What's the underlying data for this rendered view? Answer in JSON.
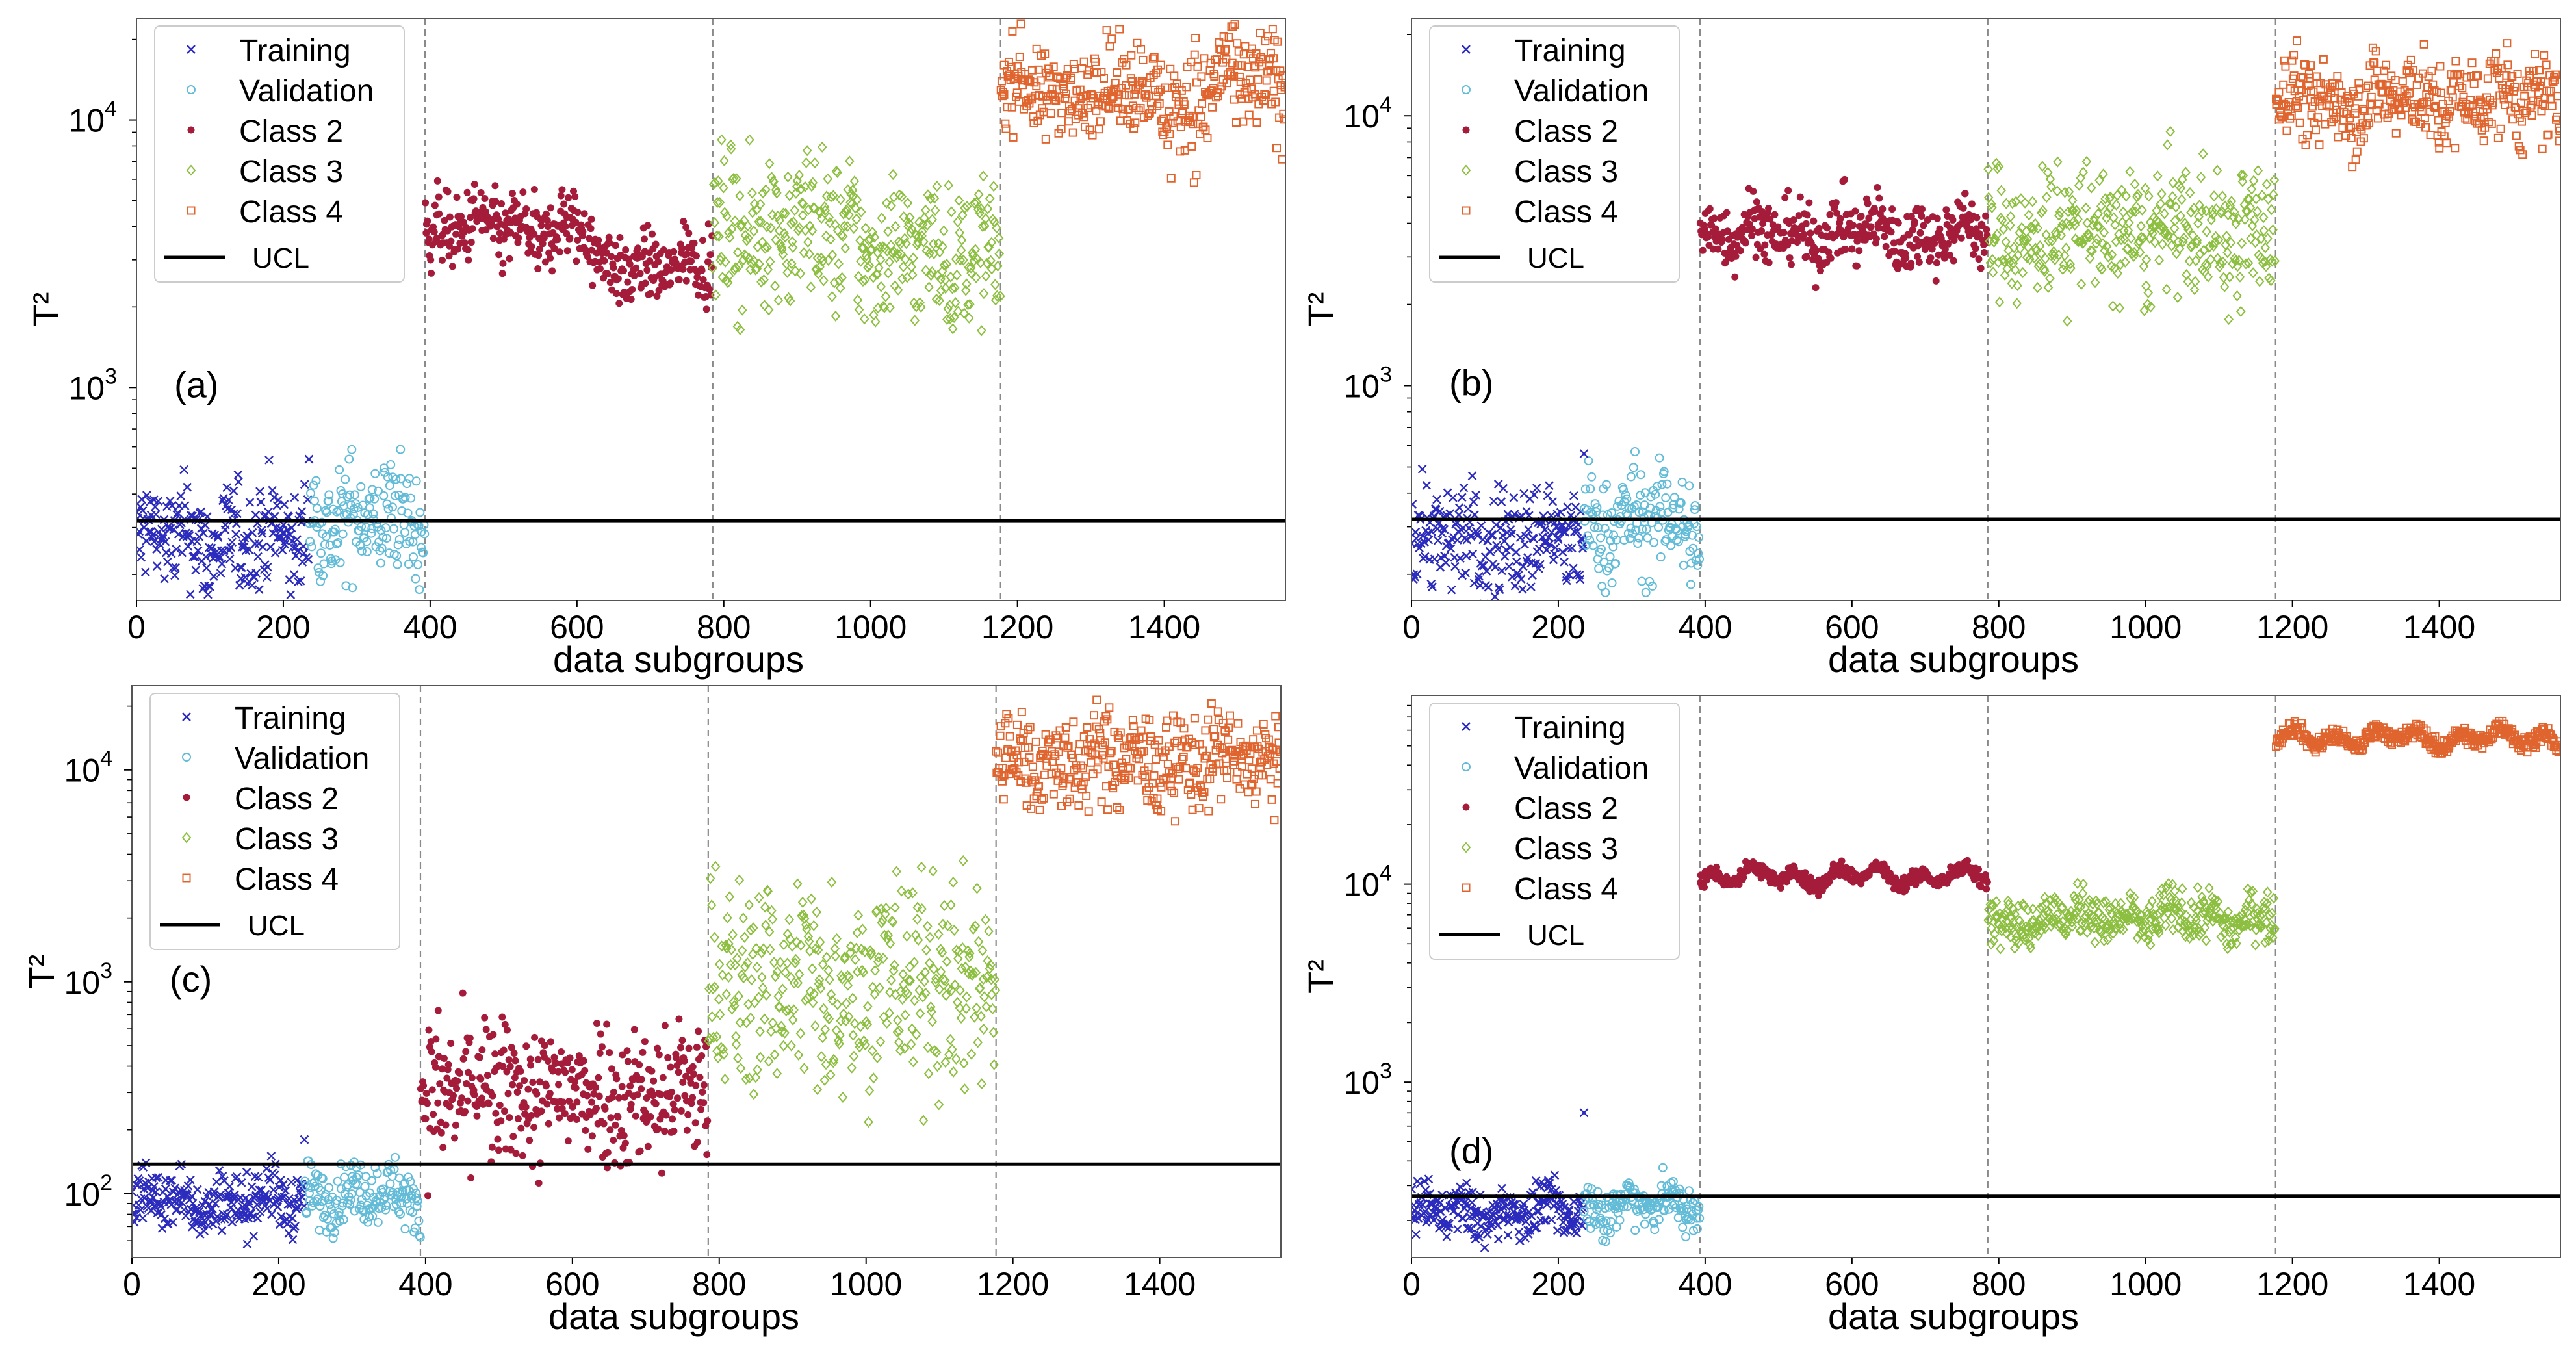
{
  "figure": {
    "shared": {
      "xlabel": "data subgroups",
      "ylabel": "T²",
      "xticks": [
        0,
        200,
        400,
        600,
        800,
        1000,
        1200,
        1400
      ],
      "xlim": [
        0,
        1565
      ],
      "boundaries": [
        393,
        785,
        1177
      ],
      "legend_location": "upper-left",
      "series_style": [
        {
          "name": "Training",
          "marker": "x",
          "color": "#2b2bbd"
        },
        {
          "name": "Validation",
          "marker": "circle",
          "color": "#62bcd8"
        },
        {
          "name": "Class 2",
          "marker": "dot",
          "color": "#a51c3a"
        },
        {
          "name": "Class 3",
          "marker": "diamond",
          "color": "#8cbf3f"
        },
        {
          "name": "Class 4",
          "marker": "square",
          "color": "#e0642e"
        }
      ],
      "ucl_label": "UCL",
      "ucl_color": "#000000"
    }
  },
  "chart_data": [
    {
      "type": "scatter",
      "panel_label": "(a)",
      "yscale": "log",
      "ylim": [
        160,
        24000
      ],
      "ytick_labels": [
        {
          "exp": "3",
          "value": 1000
        },
        {
          "exp": "4",
          "value": 10000
        }
      ],
      "ucl": 318,
      "outlier": {
        "x": 235,
        "y": 540
      },
      "series": [
        {
          "name": "Training",
          "x_range": [
            0,
            235
          ],
          "segments": [
            {
              "from": 0,
              "to": 235,
              "level": 270,
              "spread": 0.1
            }
          ]
        },
        {
          "name": "Validation",
          "x_range": [
            235,
            393
          ],
          "segments": [
            {
              "from": 235,
              "to": 393,
              "level": 320,
              "spread": 0.11
            }
          ]
        },
        {
          "name": "Class 2",
          "x_range": [
            393,
            785
          ],
          "segments": [
            {
              "from": 393,
              "to": 620,
              "level": 3900,
              "spread": 0.07
            },
            {
              "from": 620,
              "to": 785,
              "level": 2850,
              "spread": 0.06
            }
          ]
        },
        {
          "name": "Class 3",
          "x_range": [
            785,
            1177
          ],
          "segments": [
            {
              "from": 785,
              "to": 980,
              "level": 3900,
              "spread": 0.14
            },
            {
              "from": 980,
              "to": 1177,
              "level": 3200,
              "spread": 0.13
            }
          ]
        },
        {
          "name": "Class 4",
          "x_range": [
            1177,
            1565
          ],
          "segments": [
            {
              "from": 1177,
              "to": 1400,
              "level": 13000,
              "spread": 0.08
            },
            {
              "from": 1400,
              "to": 1460,
              "level": 11500,
              "spread": 0.12
            },
            {
              "from": 1460,
              "to": 1565,
              "level": 14000,
              "spread": 0.1
            }
          ]
        }
      ]
    },
    {
      "type": "scatter",
      "panel_label": "(b)",
      "yscale": "log",
      "ylim": [
        160,
        23000
      ],
      "ytick_labels": [
        {
          "exp": "3",
          "value": 1000
        },
        {
          "exp": "4",
          "value": 10000
        }
      ],
      "ucl": 320,
      "outlier": {
        "x": 235,
        "y": 560
      },
      "series": [
        {
          "name": "Training",
          "x_range": [
            0,
            235
          ],
          "segments": [
            {
              "from": 0,
              "to": 235,
              "level": 270,
              "spread": 0.1
            }
          ]
        },
        {
          "name": "Validation",
          "x_range": [
            235,
            393
          ],
          "segments": [
            {
              "from": 235,
              "to": 393,
              "level": 310,
              "spread": 0.1
            }
          ]
        },
        {
          "name": "Class 2",
          "x_range": [
            393,
            785
          ],
          "segments": [
            {
              "from": 393,
              "to": 785,
              "level": 3700,
              "spread": 0.06
            }
          ]
        },
        {
          "name": "Class 3",
          "x_range": [
            785,
            1177
          ],
          "segments": [
            {
              "from": 785,
              "to": 1177,
              "level": 3700,
              "spread": 0.12
            }
          ]
        },
        {
          "name": "Class 4",
          "x_range": [
            1177,
            1565
          ],
          "segments": [
            {
              "from": 1177,
              "to": 1565,
              "level": 11500,
              "spread": 0.08
            }
          ]
        }
      ]
    },
    {
      "type": "scatter",
      "panel_label": "(c)",
      "yscale": "log",
      "ylim": [
        50,
        25000
      ],
      "ytick_labels": [
        {
          "exp": "2",
          "value": 100
        },
        {
          "exp": "3",
          "value": 1000
        },
        {
          "exp": "4",
          "value": 10000
        }
      ],
      "ucl": 138,
      "outlier": {
        "x": 235,
        "y": 180
      },
      "series": [
        {
          "name": "Training",
          "x_range": [
            0,
            235
          ],
          "segments": [
            {
              "from": 0,
              "to": 235,
              "level": 93,
              "spread": 0.07
            }
          ]
        },
        {
          "name": "Validation",
          "x_range": [
            235,
            393
          ],
          "segments": [
            {
              "from": 235,
              "to": 393,
              "level": 100,
              "spread": 0.07
            }
          ]
        },
        {
          "name": "Class 2",
          "x_range": [
            393,
            785
          ],
          "segments": [
            {
              "from": 393,
              "to": 785,
              "level": 300,
              "spread": 0.17
            }
          ]
        },
        {
          "name": "Class 3",
          "x_range": [
            785,
            1177
          ],
          "segments": [
            {
              "from": 785,
              "to": 1177,
              "level": 1000,
              "spread": 0.25
            }
          ]
        },
        {
          "name": "Class 4",
          "x_range": [
            1177,
            1565
          ],
          "segments": [
            {
              "from": 1177,
              "to": 1565,
              "level": 11000,
              "spread": 0.11
            }
          ]
        }
      ]
    },
    {
      "type": "scatter",
      "panel_label": "(d)",
      "yscale": "log",
      "ylim": [
        130,
        90000
      ],
      "ytick_labels": [
        {
          "exp": "3",
          "value": 1000
        },
        {
          "exp": "4",
          "value": 10000
        }
      ],
      "ucl": 265,
      "outlier": {
        "x": 235,
        "y": 700
      },
      "series": [
        {
          "name": "Training",
          "x_range": [
            0,
            235
          ],
          "segments": [
            {
              "from": 0,
              "to": 235,
              "level": 220,
              "spread": 0.06
            }
          ]
        },
        {
          "name": "Validation",
          "x_range": [
            235,
            393
          ],
          "segments": [
            {
              "from": 235,
              "to": 393,
              "level": 240,
              "spread": 0.06
            }
          ]
        },
        {
          "name": "Class 2",
          "x_range": [
            393,
            785
          ],
          "segments": [
            {
              "from": 393,
              "to": 785,
              "level": 11000,
              "spread": 0.02
            }
          ]
        },
        {
          "name": "Class 3",
          "x_range": [
            785,
            1177
          ],
          "segments": [
            {
              "from": 785,
              "to": 1177,
              "level": 6800,
              "spread": 0.06
            }
          ]
        },
        {
          "name": "Class 4",
          "x_range": [
            1177,
            1565
          ],
          "segments": [
            {
              "from": 1177,
              "to": 1565,
              "level": 55000,
              "spread": 0.02
            }
          ]
        }
      ]
    }
  ]
}
